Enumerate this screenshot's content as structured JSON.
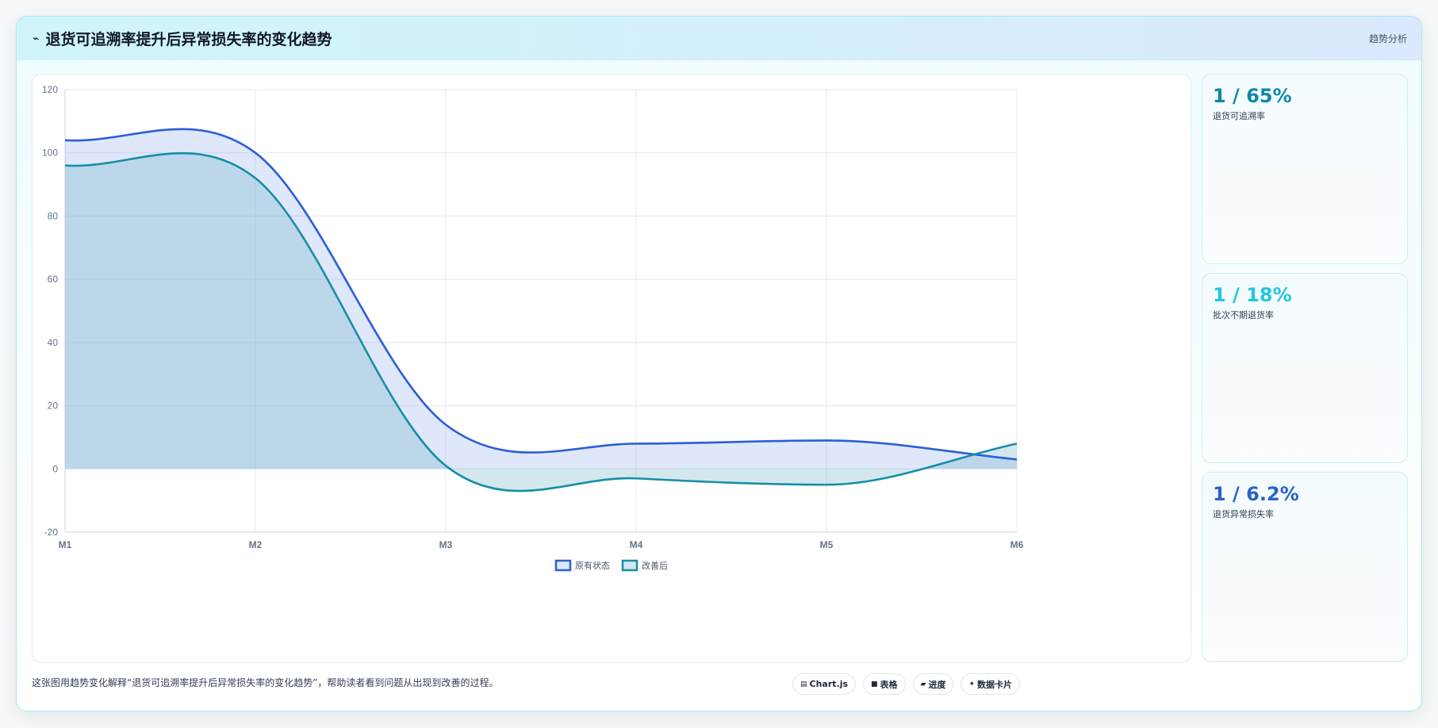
{
  "header": {
    "icon": "trend-line-icon",
    "title": "退货可追溯率提升后异常损失率的变化趋势",
    "right_label": "趋势分析"
  },
  "kpis": [
    {
      "value": "1 / 65%",
      "label": "退货可追溯率",
      "color": "#0e88a6"
    },
    {
      "value": "1 / 18%",
      "label": "批次不期退货率",
      "color": "#23c6dc"
    },
    {
      "value": "1 / 6.2%",
      "label": "退货异常损失率",
      "color": "#2563c9"
    }
  ],
  "footer": {
    "note": "这张图用趋势变化解释“退货可追溯率提升后异常损失率的变化趋势”，帮助读者看到问题从出现到改善的过程。",
    "tags": [
      {
        "icon": "chart-icon",
        "glyph": "▤",
        "label": "Chart.js"
      },
      {
        "icon": "table-icon",
        "glyph": "■",
        "label": "表格"
      },
      {
        "icon": "progress-icon",
        "glyph": "▰",
        "label": "进度"
      },
      {
        "icon": "card-icon",
        "glyph": "✦",
        "label": "数据卡片"
      }
    ]
  },
  "chart_data": {
    "type": "area",
    "categories": [
      "M1",
      "M2",
      "M3",
      "M4",
      "M5",
      "M6"
    ],
    "ylim": [
      -20,
      120
    ],
    "yticks": [
      120,
      100,
      80,
      60,
      40,
      20,
      0,
      -20
    ],
    "grid": true,
    "legend_position": "bottom",
    "series": [
      {
        "name": "原有状态",
        "values": [
          104,
          100,
          14,
          8,
          9,
          3
        ],
        "color": "#2a5fd6",
        "fill": "rgba(120,155,235,0.24)"
      },
      {
        "name": "改善后",
        "values": [
          96,
          92,
          1,
          -3,
          -5,
          8
        ],
        "color": "#168ea8",
        "fill": "rgba(110,180,200,0.30)"
      }
    ]
  }
}
